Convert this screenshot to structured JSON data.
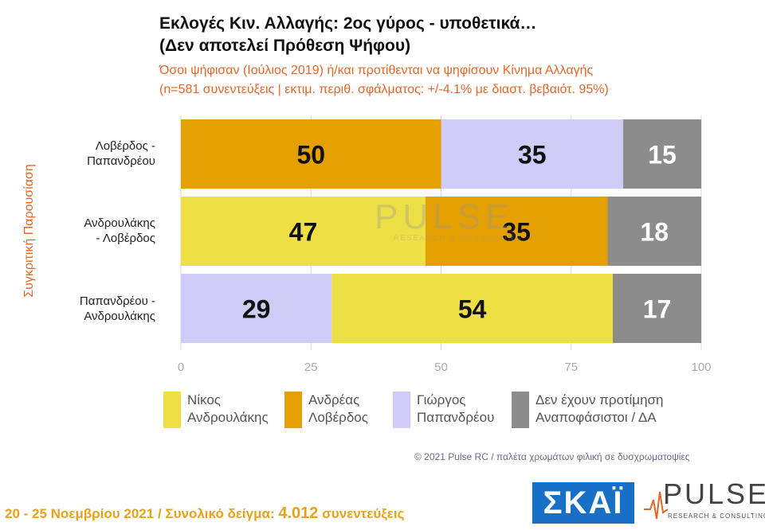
{
  "header": {
    "title_line1": "Εκλογές Κιν. Αλλαγής: 2ος γύρος - υποθετικά…",
    "title_line2": "(Δεν αποτελεί Πρόθεση Ψήφου)",
    "subtitle_line1": "Όσοι ψήφισαν (Ιούλιος 2019) ή/και προτίθενται να ψηφίσουν Κίνημα Αλλαγής",
    "subtitle_line2": "(n=581 συνεντεύξεις | εκτιμ. περιθ. σφάλματος: +/-4.1% με διαστ. βεβαιότ. 95%)"
  },
  "chart_data": {
    "type": "bar",
    "orientation": "horizontal",
    "stacked": true,
    "ylabel": "Συγκριτική Παρουσίαση",
    "xlim": [
      0,
      100
    ],
    "xticks": [
      "0",
      "25",
      "50",
      "75",
      "100"
    ],
    "categories": [
      [
        "Λοβέρδος -",
        "Παπανδρέου"
      ],
      [
        "Ανδρουλάκης",
        "- Λοβέρδος"
      ],
      [
        "Παπανδρέου -",
        "Ανδρουλάκης"
      ]
    ],
    "rows": [
      [
        {
          "series": "loverdos",
          "value": 50
        },
        {
          "series": "papandreou",
          "value": 35
        },
        {
          "series": "none",
          "value": 15
        }
      ],
      [
        {
          "series": "androulakis",
          "value": 47
        },
        {
          "series": "loverdos",
          "value": 35
        },
        {
          "series": "none",
          "value": 18
        }
      ],
      [
        {
          "series": "papandreou",
          "value": 29
        },
        {
          "series": "androulakis",
          "value": 54
        },
        {
          "series": "none",
          "value": 17
        }
      ]
    ],
    "series": [
      {
        "id": "androulakis",
        "name": [
          "Νίκος",
          "Ανδρουλάκης"
        ],
        "color": "#ede045"
      },
      {
        "id": "loverdos",
        "name": [
          "Ανδρέας",
          "Λοβέρδος"
        ],
        "color": "#e3a000"
      },
      {
        "id": "papandreou",
        "name": [
          "Γιώργος",
          "Παπανδρέου"
        ],
        "color": "#cfcdf7"
      },
      {
        "id": "none",
        "name": [
          "Δεν έχουν προτίμηση",
          "Αναποφάσιστοι / ΔΑ"
        ],
        "color": "#8c8c8c"
      }
    ],
    "label_colors": {
      "default": "#111111",
      "none": "#ffffff"
    },
    "legend_position": "bottom"
  },
  "watermark": {
    "name": "PULSE",
    "sub": "RESEARCH & CONSULTING"
  },
  "credits": {
    "copyright": "© 2021 Pulse RC  /  παλέτα χρωμάτων φιλική σε δυσχρωματοψίες"
  },
  "footer": {
    "dates": "20 - 25  Νοεμβρίου 2021",
    "separator": "/",
    "sample_label": "Συνολικό δείγμα:",
    "sample_value": "4.012",
    "sample_unit": "συνεντεύξεις"
  },
  "logos": {
    "skai": "ΣΚΑΪ",
    "pulse": "PULSE",
    "pulse_sub": "RESEARCH & CONSULTING"
  }
}
